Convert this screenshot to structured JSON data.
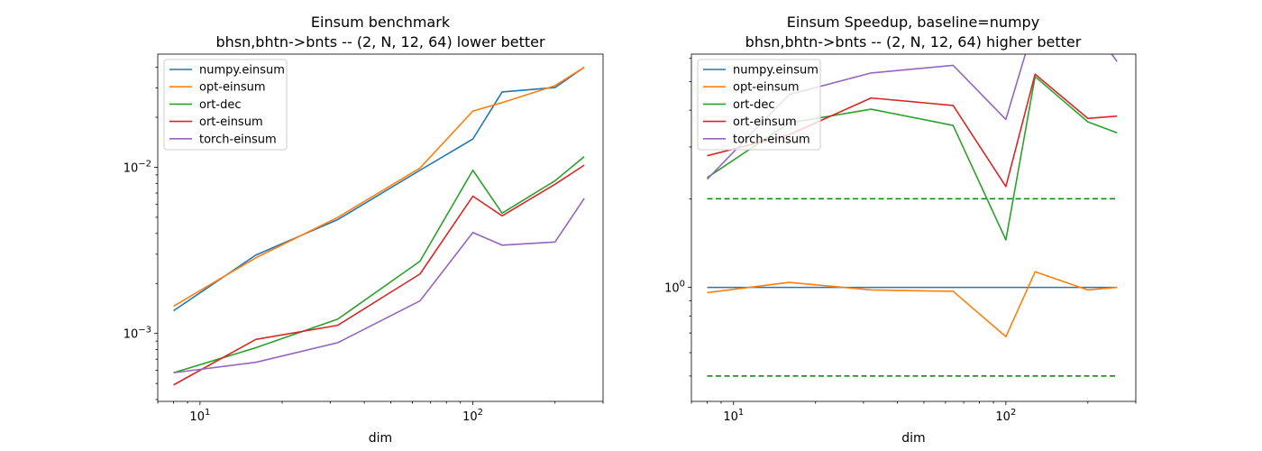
{
  "chart_data": [
    {
      "type": "line",
      "title": "Einsum benchmark",
      "subtitle": "bhsn,bhtn->bnts -- (2, N, 12, 64) lower better",
      "xlabel": "dim",
      "ylabel": "",
      "xscale": "log",
      "yscale": "log",
      "xlim": [
        7,
        300
      ],
      "ylim": [
        0.00039,
        0.048
      ],
      "x_ticks": [
        {
          "value": 10,
          "base": "10",
          "exp": "1"
        },
        {
          "value": 100,
          "base": "10",
          "exp": "2"
        }
      ],
      "y_ticks": [
        {
          "value": 0.001,
          "base": "10",
          "exp": "−3"
        },
        {
          "value": 0.01,
          "base": "10",
          "exp": "−2"
        }
      ],
      "grid": false,
      "legend": "top-left",
      "x": [
        8,
        16,
        32,
        64,
        100,
        128,
        200,
        256
      ],
      "series": [
        {
          "name": "numpy.einsum",
          "color": "#1f77b4",
          "values": [
            0.00137,
            0.00296,
            0.00485,
            0.0096,
            0.0148,
            0.0284,
            0.0302,
            0.04
          ]
        },
        {
          "name": "opt-einsum",
          "color": "#ff7f0e",
          "values": [
            0.00146,
            0.00285,
            0.005,
            0.0099,
            0.0218,
            0.0245,
            0.031,
            0.04
          ]
        },
        {
          "name": "ort-dec",
          "color": "#2ca02c",
          "values": [
            0.00058,
            0.00082,
            0.00122,
            0.00272,
            0.0096,
            0.0053,
            0.0083,
            0.0116
          ]
        },
        {
          "name": "ort-einsum",
          "color": "#d62728",
          "values": [
            0.00049,
            0.00092,
            0.00112,
            0.00228,
            0.0067,
            0.0051,
            0.0079,
            0.0103
          ]
        },
        {
          "name": "torch-einsum",
          "color": "#9467bd",
          "values": [
            0.00058,
            0.00067,
            0.00088,
            0.00157,
            0.00405,
            0.0034,
            0.00355,
            0.0065
          ]
        }
      ]
    },
    {
      "type": "line",
      "title": "Einsum Speedup, baseline=numpy",
      "subtitle": "bhsn,bhtn->bnts -- (2, N, 12, 64) higher better",
      "xlabel": "dim",
      "ylabel": "",
      "xscale": "log",
      "yscale": "log",
      "xlim": [
        7,
        300
      ],
      "ylim": [
        0.41,
        6.2
      ],
      "x_ticks": [
        {
          "value": 10,
          "base": "10",
          "exp": "1"
        },
        {
          "value": 100,
          "base": "10",
          "exp": "2"
        }
      ],
      "y_ticks": [
        {
          "value": 1,
          "base": "10",
          "exp": "0"
        }
      ],
      "grid": false,
      "legend": "top-left",
      "x": [
        8,
        16,
        32,
        64,
        100,
        128,
        200,
        256
      ],
      "series": [
        {
          "name": "numpy.einsum",
          "color": "#1f77b4",
          "values": [
            1.0,
            1.0,
            1.0,
            1.0,
            1.0,
            1.0,
            1.0,
            1.0
          ]
        },
        {
          "name": "opt-einsum",
          "color": "#ff7f0e",
          "values": [
            0.96,
            1.04,
            0.98,
            0.97,
            0.68,
            1.13,
            0.98,
            1.0
          ]
        },
        {
          "name": "ort-dec",
          "color": "#2ca02c",
          "values": [
            2.36,
            3.62,
            4.03,
            3.55,
            1.45,
            5.2,
            3.65,
            3.35
          ]
        },
        {
          "name": "ort-einsum",
          "color": "#d62728",
          "values": [
            2.8,
            3.3,
            4.4,
            4.15,
            2.2,
            5.3,
            3.75,
            3.82
          ]
        },
        {
          "name": "torch-einsum",
          "color": "#9467bd",
          "values": [
            2.33,
            4.52,
            5.35,
            5.68,
            3.72,
            8.0,
            8.05,
            5.85
          ]
        }
      ],
      "reference_lines": [
        {
          "y": 2.0,
          "color": "#008000",
          "style": "dashed"
        },
        {
          "y": 0.5,
          "color": "#008000",
          "style": "dashed"
        }
      ]
    }
  ]
}
